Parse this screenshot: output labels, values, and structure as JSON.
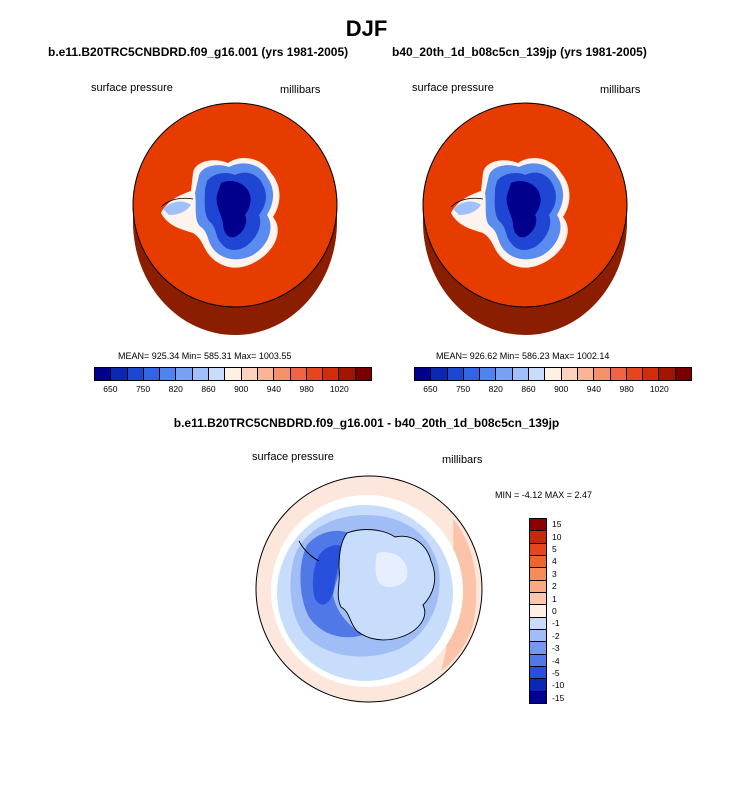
{
  "main_title": "DJF",
  "panels": [
    {
      "case_title": "b.e11.B20TRC5CNBDRD.f09_g16.001 (yrs 1981-2005)",
      "variable": "surface pressure",
      "units": "millibars",
      "stats": "MEAN= 925.34  Min= 585.31  Max= 1003.55"
    },
    {
      "case_title": "b40_20th_1d_b08c5cn_139jp (yrs 1981-2005)",
      "variable": "surface pressure",
      "units": "millibars",
      "stats": "MEAN= 926.62  Min= 586.23  Max= 1002.14"
    }
  ],
  "abs_colorbar": {
    "colors": [
      "#00008c",
      "#0a28b4",
      "#1e46d2",
      "#3264e6",
      "#5082f0",
      "#78a0f5",
      "#a0c0fa",
      "#c8dcfc",
      "#fff0e6",
      "#fcd2be",
      "#fab496",
      "#f5906e",
      "#f06446",
      "#e6461e",
      "#d22d0a",
      "#a01400",
      "#780000"
    ],
    "labels": [
      "650",
      "750",
      "820",
      "860",
      "900",
      "940",
      "980",
      "1020"
    ]
  },
  "diff": {
    "title": "b.e11.B20TRC5CNBDRD.f09_g16.001 - b40_20th_1d_b08c5cn_139jp",
    "variable": "surface pressure",
    "units": "millibars",
    "stats": "MIN =  -4.12 MAX =   2.47"
  },
  "diff_colorbar": {
    "colors": [
      "#8c0000",
      "#c8280a",
      "#e6461e",
      "#f06432",
      "#f58c5a",
      "#faaa82",
      "#fcc8aa",
      "#fff0e6",
      "#c8dcfc",
      "#a0bef5",
      "#7896ee",
      "#5078e6",
      "#2850dc",
      "#0a28b4",
      "#000096"
    ],
    "labels": [
      "15",
      "10",
      "5",
      "4",
      "3",
      "2",
      "1",
      "0",
      "-1",
      "-2",
      "-3",
      "-4",
      "-5",
      "-10",
      "-15"
    ]
  }
}
